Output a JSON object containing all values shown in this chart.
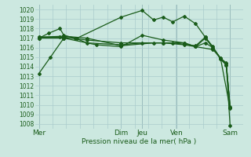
{
  "title": "Pression niveau de la mer( hPa )",
  "background_color": "#cce8e0",
  "grid_color": "#aacccc",
  "line_color": "#1a5c1a",
  "ylim": [
    1007.5,
    1020.5
  ],
  "yticks": [
    1008,
    1009,
    1010,
    1011,
    1012,
    1013,
    1014,
    1015,
    1016,
    1017,
    1018,
    1019,
    1020
  ],
  "vlines_x": [
    0.0,
    0.43,
    0.86
  ],
  "day_labels": [
    "Mer",
    "Dim",
    "Jeu",
    "Ven",
    "Sam"
  ],
  "day_positions": [
    0.0,
    0.43,
    0.54,
    0.72,
    1.0
  ],
  "lines": [
    [
      [
        0.0,
        1013.3
      ],
      [
        0.06,
        1015.0
      ],
      [
        0.13,
        1017.0
      ],
      [
        0.2,
        1017.0
      ],
      [
        0.43,
        1019.2
      ],
      [
        0.54,
        1019.9
      ],
      [
        0.6,
        1018.9
      ],
      [
        0.65,
        1019.2
      ],
      [
        0.7,
        1018.7
      ],
      [
        0.76,
        1019.3
      ],
      [
        0.82,
        1018.5
      ],
      [
        0.87,
        1017.1
      ],
      [
        0.91,
        1016.1
      ],
      [
        0.95,
        1014.8
      ],
      [
        0.98,
        1014.2
      ],
      [
        1.0,
        1009.8
      ]
    ],
    [
      [
        0.0,
        1017.0
      ],
      [
        0.13,
        1017.0
      ],
      [
        0.3,
        1016.3
      ],
      [
        0.43,
        1016.1
      ],
      [
        0.54,
        1017.3
      ],
      [
        0.65,
        1016.8
      ],
      [
        0.76,
        1016.5
      ],
      [
        0.82,
        1016.1
      ],
      [
        0.87,
        1016.5
      ],
      [
        0.91,
        1016.0
      ],
      [
        0.95,
        1014.8
      ],
      [
        0.98,
        1014.2
      ],
      [
        1.0,
        1007.8
      ]
    ],
    [
      [
        0.0,
        1017.0
      ],
      [
        0.05,
        1017.5
      ],
      [
        0.11,
        1018.0
      ],
      [
        0.13,
        1017.3
      ],
      [
        0.19,
        1017.0
      ],
      [
        0.25,
        1016.5
      ],
      [
        0.43,
        1016.3
      ],
      [
        0.54,
        1016.5
      ],
      [
        0.65,
        1016.5
      ],
      [
        0.76,
        1016.3
      ],
      [
        0.82,
        1016.1
      ],
      [
        0.87,
        1017.0
      ],
      [
        0.91,
        1016.0
      ],
      [
        0.95,
        1014.9
      ],
      [
        0.98,
        1014.4
      ],
      [
        1.0,
        1009.7
      ]
    ],
    [
      [
        0.0,
        1017.1
      ],
      [
        0.13,
        1017.2
      ],
      [
        0.25,
        1017.0
      ],
      [
        0.43,
        1016.2
      ],
      [
        0.6,
        1016.5
      ],
      [
        0.7,
        1016.5
      ],
      [
        0.82,
        1016.2
      ],
      [
        0.87,
        1017.1
      ],
      [
        0.95,
        1014.9
      ],
      [
        1.0,
        1009.6
      ]
    ],
    [
      [
        0.0,
        1017.1
      ],
      [
        0.11,
        1017.1
      ],
      [
        0.13,
        1017.1
      ],
      [
        0.25,
        1016.8
      ],
      [
        0.43,
        1016.5
      ],
      [
        0.65,
        1016.5
      ],
      [
        0.76,
        1016.5
      ],
      [
        0.82,
        1016.1
      ],
      [
        0.91,
        1015.8
      ],
      [
        0.95,
        1014.9
      ],
      [
        0.98,
        1014.3
      ],
      [
        1.0,
        1009.7
      ]
    ]
  ],
  "marker": "D",
  "marker_size": 2.0,
  "line_width": 0.9
}
